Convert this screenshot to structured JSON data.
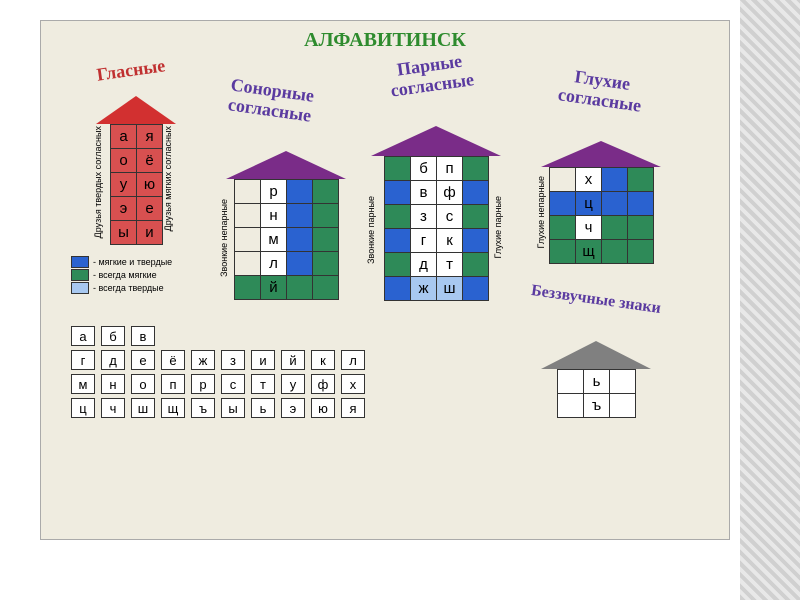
{
  "colors": {
    "title": "#2e8b2e",
    "vowels_title": "#c03030",
    "section_title": "#5a3aa0",
    "roof_red": "#d23030",
    "roof_purple": "#7a2c88",
    "roof_gray": "#808080",
    "cell_red": "#d85050",
    "cell_blue": "#2a62d0",
    "cell_green": "#2e8a58",
    "cell_pale_blue": "#a8c8f0",
    "cell_white": "#ffffff",
    "cell_blank": "#efece0"
  },
  "main_title": "АЛФАВИТИНСК",
  "houses": {
    "vowels": {
      "title": "Гласные",
      "side_left": "Друзья твердых согласных",
      "side_right": "Друзья мягких согласных",
      "roof_color": "roof_red",
      "rows": [
        [
          {
            "t": "а",
            "bg": "cell_red"
          },
          {
            "t": "я",
            "bg": "cell_red"
          }
        ],
        [
          {
            "t": "о",
            "bg": "cell_red"
          },
          {
            "t": "ё",
            "bg": "cell_red"
          }
        ],
        [
          {
            "t": "у",
            "bg": "cell_red"
          },
          {
            "t": "ю",
            "bg": "cell_red"
          }
        ],
        [
          {
            "t": "э",
            "bg": "cell_red"
          },
          {
            "t": "е",
            "bg": "cell_red"
          }
        ],
        [
          {
            "t": "ы",
            "bg": "cell_red"
          },
          {
            "t": "и",
            "bg": "cell_red"
          }
        ]
      ]
    },
    "sonorants": {
      "title": "Сонорные согласные",
      "side_left": "Звонкие непарные",
      "roof_color": "roof_purple",
      "rows": [
        [
          {
            "t": "",
            "bg": "cell_blank"
          },
          {
            "t": "р",
            "bg": "cell_white"
          },
          {
            "t": "",
            "bg": "cell_blue"
          },
          {
            "t": "",
            "bg": "cell_green"
          }
        ],
        [
          {
            "t": "",
            "bg": "cell_blank"
          },
          {
            "t": "н",
            "bg": "cell_white"
          },
          {
            "t": "",
            "bg": "cell_blue"
          },
          {
            "t": "",
            "bg": "cell_green"
          }
        ],
        [
          {
            "t": "",
            "bg": "cell_blank"
          },
          {
            "t": "м",
            "bg": "cell_white"
          },
          {
            "t": "",
            "bg": "cell_blue"
          },
          {
            "t": "",
            "bg": "cell_green"
          }
        ],
        [
          {
            "t": "",
            "bg": "cell_blank"
          },
          {
            "t": "л",
            "bg": "cell_white"
          },
          {
            "t": "",
            "bg": "cell_blue"
          },
          {
            "t": "",
            "bg": "cell_green"
          }
        ],
        [
          {
            "t": "",
            "bg": "cell_green"
          },
          {
            "t": "й",
            "bg": "cell_green"
          },
          {
            "t": "",
            "bg": "cell_green"
          },
          {
            "t": "",
            "bg": "cell_green"
          }
        ]
      ]
    },
    "paired": {
      "title": "Парные согласные",
      "side_left": "Звонкие парные",
      "side_right": "Глухие парные",
      "roof_color": "roof_purple",
      "rows": [
        [
          {
            "t": "",
            "bg": "cell_green"
          },
          {
            "t": "б",
            "bg": "cell_white"
          },
          {
            "t": "п",
            "bg": "cell_white"
          },
          {
            "t": "",
            "bg": "cell_green"
          }
        ],
        [
          {
            "t": "",
            "bg": "cell_blue"
          },
          {
            "t": "в",
            "bg": "cell_white"
          },
          {
            "t": "ф",
            "bg": "cell_white"
          },
          {
            "t": "",
            "bg": "cell_blue"
          }
        ],
        [
          {
            "t": "",
            "bg": "cell_green"
          },
          {
            "t": "з",
            "bg": "cell_white"
          },
          {
            "t": "с",
            "bg": "cell_white"
          },
          {
            "t": "",
            "bg": "cell_green"
          }
        ],
        [
          {
            "t": "",
            "bg": "cell_blue"
          },
          {
            "t": "г",
            "bg": "cell_white"
          },
          {
            "t": "к",
            "bg": "cell_white"
          },
          {
            "t": "",
            "bg": "cell_blue"
          }
        ],
        [
          {
            "t": "",
            "bg": "cell_green"
          },
          {
            "t": "д",
            "bg": "cell_white"
          },
          {
            "t": "т",
            "bg": "cell_white"
          },
          {
            "t": "",
            "bg": "cell_green"
          }
        ],
        [
          {
            "t": "",
            "bg": "cell_blue"
          },
          {
            "t": "ж",
            "bg": "cell_pale_blue"
          },
          {
            "t": "ш",
            "bg": "cell_pale_blue"
          },
          {
            "t": "",
            "bg": "cell_blue"
          }
        ]
      ]
    },
    "voiceless": {
      "title": "Глухие согласные",
      "side_left": "Глухие непарные",
      "roof_color": "roof_purple",
      "rows": [
        [
          {
            "t": "",
            "bg": "cell_blank"
          },
          {
            "t": "х",
            "bg": "cell_white"
          },
          {
            "t": "",
            "bg": "cell_blue"
          },
          {
            "t": "",
            "bg": "cell_green"
          }
        ],
        [
          {
            "t": "",
            "bg": "cell_blue"
          },
          {
            "t": "ц",
            "bg": "cell_blue"
          },
          {
            "t": "",
            "bg": "cell_blue"
          },
          {
            "t": "",
            "bg": "cell_blue"
          }
        ],
        [
          {
            "t": "",
            "bg": "cell_green"
          },
          {
            "t": "ч",
            "bg": "cell_white"
          },
          {
            "t": "",
            "bg": "cell_green"
          },
          {
            "t": "",
            "bg": "cell_green"
          }
        ],
        [
          {
            "t": "",
            "bg": "cell_green"
          },
          {
            "t": "щ",
            "bg": "cell_green"
          },
          {
            "t": "",
            "bg": "cell_green"
          },
          {
            "t": "",
            "bg": "cell_green"
          }
        ]
      ]
    },
    "silent": {
      "title": "Беззвучные знаки",
      "roof_color": "roof_gray",
      "rows": [
        [
          {
            "t": "",
            "bg": "cell_white"
          },
          {
            "t": "ь",
            "bg": "cell_white"
          },
          {
            "t": "",
            "bg": "cell_white"
          }
        ],
        [
          {
            "t": "",
            "bg": "cell_white"
          },
          {
            "t": "ъ",
            "bg": "cell_white"
          },
          {
            "t": "",
            "bg": "cell_white"
          }
        ]
      ]
    }
  },
  "legend": [
    {
      "color": "cell_blue",
      "label": "- мягкие и твердые"
    },
    {
      "color": "cell_green",
      "label": "- всегда мягкие"
    },
    {
      "color": "cell_pale_blue",
      "label": "- всегда твердые"
    }
  ],
  "alphabet": [
    [
      "а",
      "б",
      "в"
    ],
    [
      "г",
      "д",
      "е",
      "ё",
      "ж",
      "з",
      "и",
      "й",
      "к",
      "л"
    ],
    [
      "м",
      "н",
      "о",
      "п",
      "р",
      "с",
      "т",
      "у",
      "ф",
      "х"
    ],
    [
      "ц",
      "ч",
      "ш",
      "щ",
      "ъ",
      "ы",
      "ь",
      "э",
      "ю",
      "я"
    ]
  ]
}
